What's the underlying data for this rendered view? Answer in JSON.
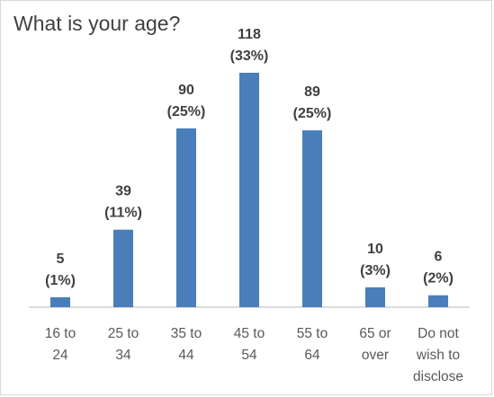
{
  "chart_data": {
    "type": "bar",
    "title": "What is your age?",
    "xlabel": "",
    "ylabel": "",
    "ylim": [
      0,
      118
    ],
    "grid": false,
    "legend": "none",
    "categories": [
      [
        "16 to",
        "24"
      ],
      [
        "25 to",
        "34"
      ],
      [
        "35 to",
        "44"
      ],
      [
        "45 to",
        "54"
      ],
      [
        "55 to",
        "64"
      ],
      [
        "65 or",
        "over"
      ],
      [
        "Do not",
        "wish to",
        "disclose"
      ]
    ],
    "values": [
      5,
      39,
      90,
      118,
      89,
      10,
      6
    ],
    "percent_labels": [
      "(1%)",
      "(11%)",
      "(25%)",
      "(33%)",
      "(25%)",
      "(3%)",
      "(2%)"
    ],
    "colors": {
      "bar": "#4a7ebb"
    }
  }
}
